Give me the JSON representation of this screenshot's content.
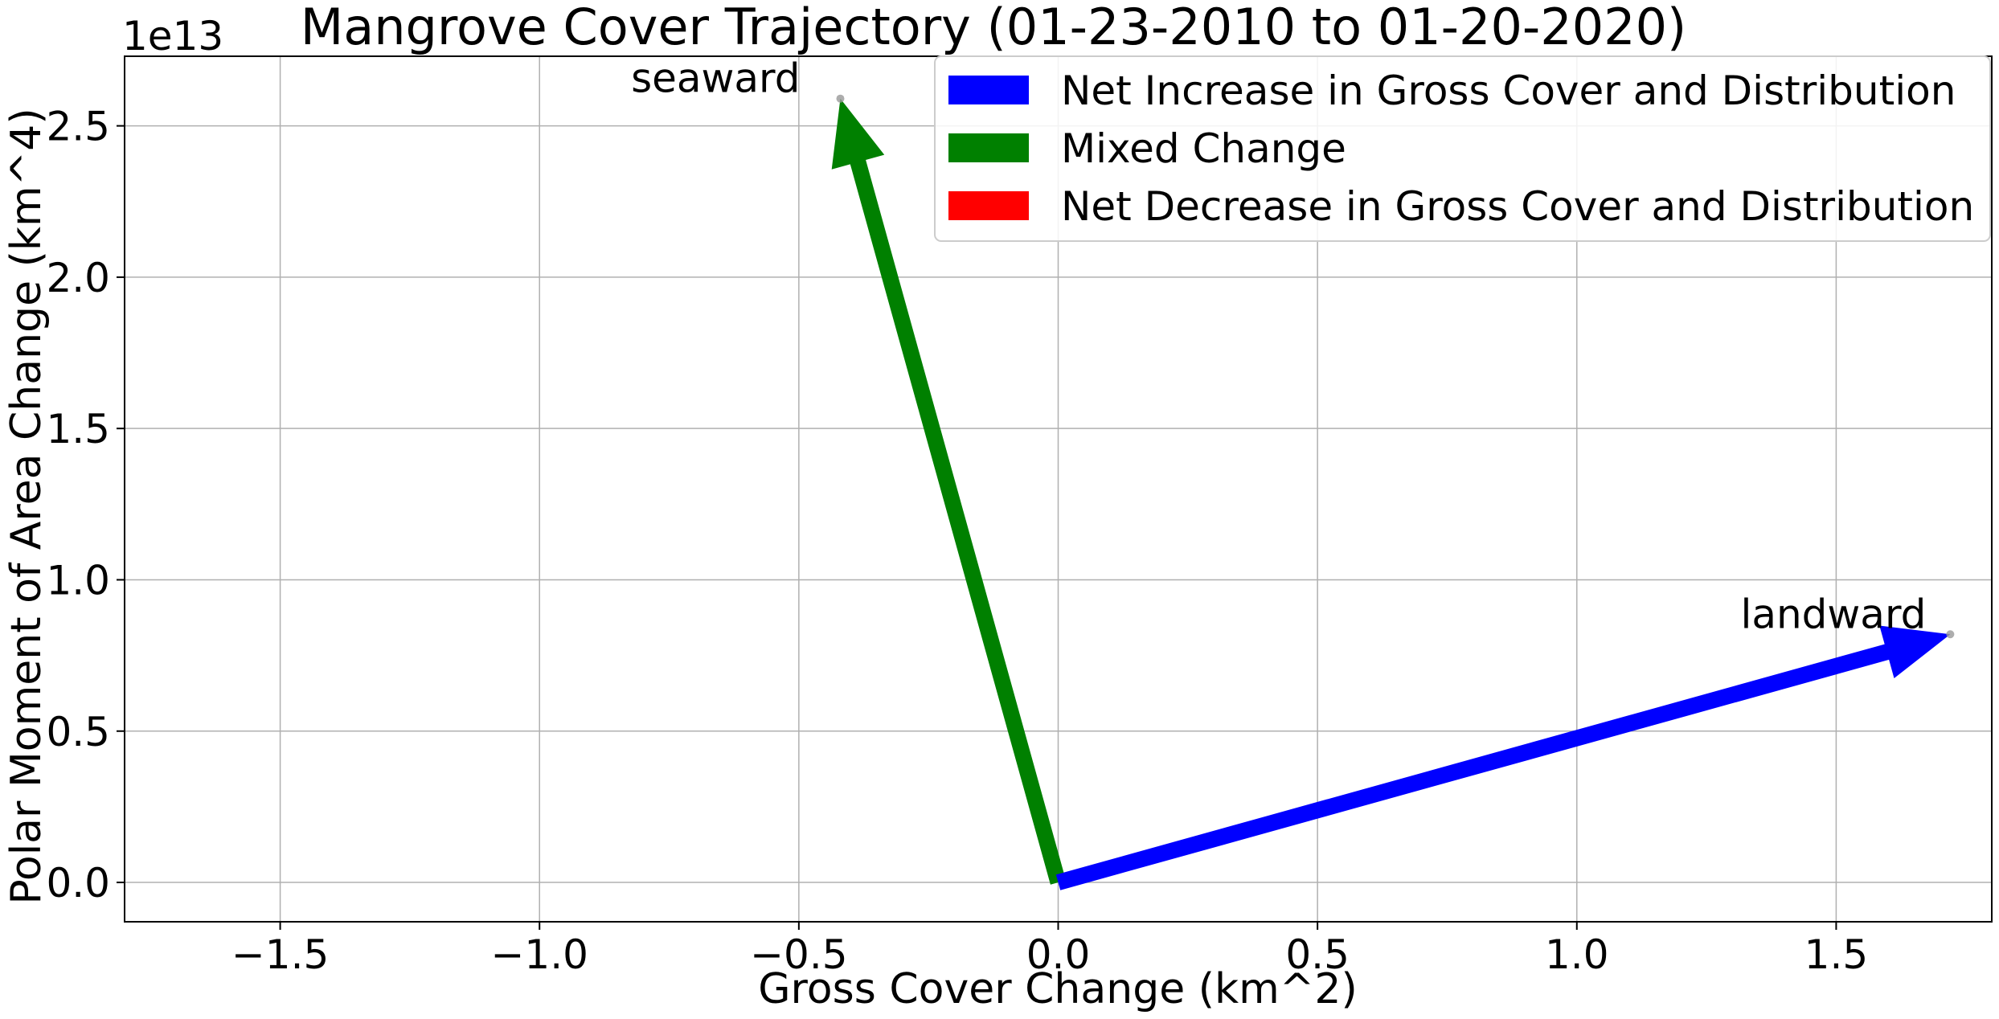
{
  "chart_data": {
    "type": "quiver",
    "title": "Mangrove Cover Trajectory (01-23-2010 to 01-20-2020)",
    "xlabel": "Gross Cover Change (km^2)",
    "ylabel": "Polar Moment of Area Change (km^4)",
    "y_offset_label": "1e13",
    "xlim": [
      -1.8,
      1.8
    ],
    "ylim": [
      -0.13,
      2.73
    ],
    "y_scale_factor": 10000000000000.0,
    "grid": true,
    "x_ticks": [
      -1.5,
      -1.0,
      -0.5,
      0.0,
      0.5,
      1.0,
      1.5
    ],
    "x_tick_labels": [
      "−1.5",
      "−1.0",
      "−0.5",
      "0.0",
      "0.5",
      "1.0",
      "1.5"
    ],
    "y_ticks": [
      0.0,
      0.5,
      1.0,
      1.5,
      2.0,
      2.5
    ],
    "y_tick_labels": [
      "0.0",
      "0.5",
      "1.0",
      "1.5",
      "2.0",
      "2.5"
    ],
    "legend_position": "top-right",
    "legend": [
      {
        "label": "Net Increase in Gross Cover and Distribution",
        "color": "#0000ff"
      },
      {
        "label": "Mixed Change",
        "color": "#008000"
      },
      {
        "label": "Net Decrease in Gross Cover and Distribution",
        "color": "#ff0000"
      }
    ],
    "vectors": [
      {
        "label": "seaward",
        "x0": 0.0,
        "y0": 0.0,
        "x1": -0.42,
        "y1": 2.59,
        "color": "#008000",
        "label_anchor": "left"
      },
      {
        "label": "landward",
        "x0": 0.0,
        "y0": 0.0,
        "x1": 1.72,
        "y1": 0.82,
        "color": "#0000ff",
        "label_anchor": "right"
      }
    ]
  }
}
